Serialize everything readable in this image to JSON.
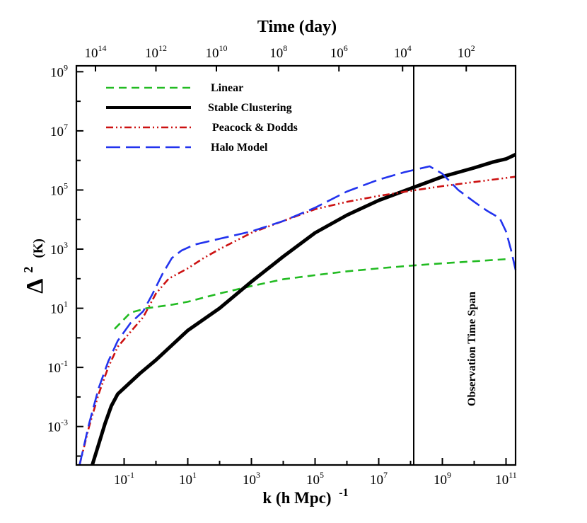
{
  "chart_data": {
    "type": "line",
    "title": "Time (day)",
    "xlabel": "k (h Mpc)",
    "xlabel_exp": "-1",
    "ylabel": "Δ",
    "ylabel_exp": "2",
    "ylabel_unit": "(K)",
    "x_scale": "log",
    "y_scale": "log",
    "xlim_log10": [
      -2.5,
      11.3
    ],
    "ylim_log10": [
      -4.3,
      9.2
    ],
    "x_ticks": [
      {
        "base": "10",
        "exp": "-1",
        "log": -1
      },
      {
        "base": "10",
        "exp": "1",
        "log": 1
      },
      {
        "base": "10",
        "exp": "3",
        "log": 3
      },
      {
        "base": "10",
        "exp": "5",
        "log": 5
      },
      {
        "base": "10",
        "exp": "7",
        "log": 7
      },
      {
        "base": "10",
        "exp": "9",
        "log": 9
      },
      {
        "base": "10",
        "exp": "11",
        "log": 11
      }
    ],
    "y_ticks": [
      {
        "base": "10",
        "exp": "-3",
        "log": -3
      },
      {
        "base": "10",
        "exp": "-1",
        "log": -1
      },
      {
        "base": "10",
        "exp": "1",
        "log": 1
      },
      {
        "base": "10",
        "exp": "3",
        "log": 3
      },
      {
        "base": "10",
        "exp": "5",
        "log": 5
      },
      {
        "base": "10",
        "exp": "7",
        "log": 7
      },
      {
        "base": "10",
        "exp": "9",
        "log": 9
      }
    ],
    "top_axis": {
      "label": "Time (day)",
      "ticks": [
        {
          "base": "10",
          "exp": "14",
          "x_log": -1.9
        },
        {
          "base": "10",
          "exp": "12",
          "x_log": 0.0
        },
        {
          "base": "10",
          "exp": "10",
          "x_log": 1.9
        },
        {
          "base": "10",
          "exp": "8",
          "x_log": 3.85
        },
        {
          "base": "10",
          "exp": "6",
          "x_log": 5.75
        },
        {
          "base": "10",
          "exp": "4",
          "x_log": 7.75
        },
        {
          "base": "10",
          "exp": "2",
          "x_log": 9.75
        }
      ]
    },
    "legend_position": "top-left",
    "series": [
      {
        "name": "Linear",
        "color": "#22bb22",
        "dash": "dashed",
        "x_log": [
          -1.3,
          -0.8,
          -0.3,
          0.5,
          1.0,
          2.0,
          3.0,
          4.0,
          5.0,
          6.0,
          7.0,
          8.0,
          9.0,
          10.0,
          11.0
        ],
        "y_log": [
          0.3,
          0.85,
          1.0,
          1.12,
          1.22,
          1.5,
          1.75,
          1.98,
          2.12,
          2.25,
          2.35,
          2.44,
          2.52,
          2.59,
          2.66
        ]
      },
      {
        "name": "Stable Clustering",
        "color": "#000000",
        "dash": "solid",
        "x_log": [
          -2.0,
          -1.8,
          -1.6,
          -1.4,
          -1.2,
          -1.0,
          -0.8,
          -0.5,
          0.0,
          0.5,
          1.0,
          2.0,
          3.0,
          4.0,
          5.0,
          6.0,
          7.0,
          8.0,
          9.0,
          10.0,
          10.6,
          11.0,
          11.3
        ],
        "y_log": [
          -4.3,
          -3.6,
          -2.9,
          -2.3,
          -1.9,
          -1.7,
          -1.5,
          -1.2,
          -0.75,
          -0.25,
          0.25,
          1.0,
          1.9,
          2.75,
          3.55,
          4.15,
          4.65,
          5.05,
          5.45,
          5.75,
          5.95,
          6.05,
          6.2
        ]
      },
      {
        "name": "Peacock & Dodds",
        "color": "#cc1111",
        "dash": "dashdotdot",
        "x_log": [
          -2.4,
          -2.1,
          -1.8,
          -1.5,
          -1.2,
          -0.8,
          -0.4,
          0.0,
          0.4,
          1.0,
          1.5,
          2.0,
          3.0,
          4.0,
          5.0,
          6.0,
          7.0,
          8.0,
          9.0,
          10.0,
          11.3
        ],
        "y_log": [
          -4.3,
          -3.0,
          -1.9,
          -1.0,
          -0.3,
          0.2,
          0.7,
          1.5,
          2.0,
          2.35,
          2.7,
          3.0,
          3.55,
          3.95,
          4.35,
          4.6,
          4.8,
          4.97,
          5.13,
          5.27,
          5.45
        ]
      },
      {
        "name": "Halo Model",
        "color": "#2233ee",
        "dash": "longdash",
        "x_log": [
          -2.4,
          -2.1,
          -1.8,
          -1.5,
          -1.2,
          -0.8,
          -0.4,
          -0.1,
          0.2,
          0.5,
          0.8,
          1.2,
          2.0,
          3.0,
          4.0,
          5.0,
          6.0,
          7.0,
          7.8,
          8.6,
          9.0,
          9.5,
          10.0,
          10.4,
          10.8,
          11.0,
          11.15,
          11.3
        ],
        "y_log": [
          -4.3,
          -2.9,
          -1.7,
          -0.8,
          -0.1,
          0.5,
          0.9,
          1.5,
          2.15,
          2.7,
          2.95,
          3.15,
          3.35,
          3.6,
          3.95,
          4.4,
          4.95,
          5.35,
          5.6,
          5.8,
          5.55,
          5.0,
          4.6,
          4.3,
          4.05,
          3.6,
          3.0,
          2.3
        ]
      }
    ],
    "annotations": [
      {
        "type": "vline",
        "x_log": 8.1,
        "label": "Observation Time Span"
      },
      {
        "type": "vline",
        "x_log": 11.3,
        "label": ""
      }
    ]
  }
}
